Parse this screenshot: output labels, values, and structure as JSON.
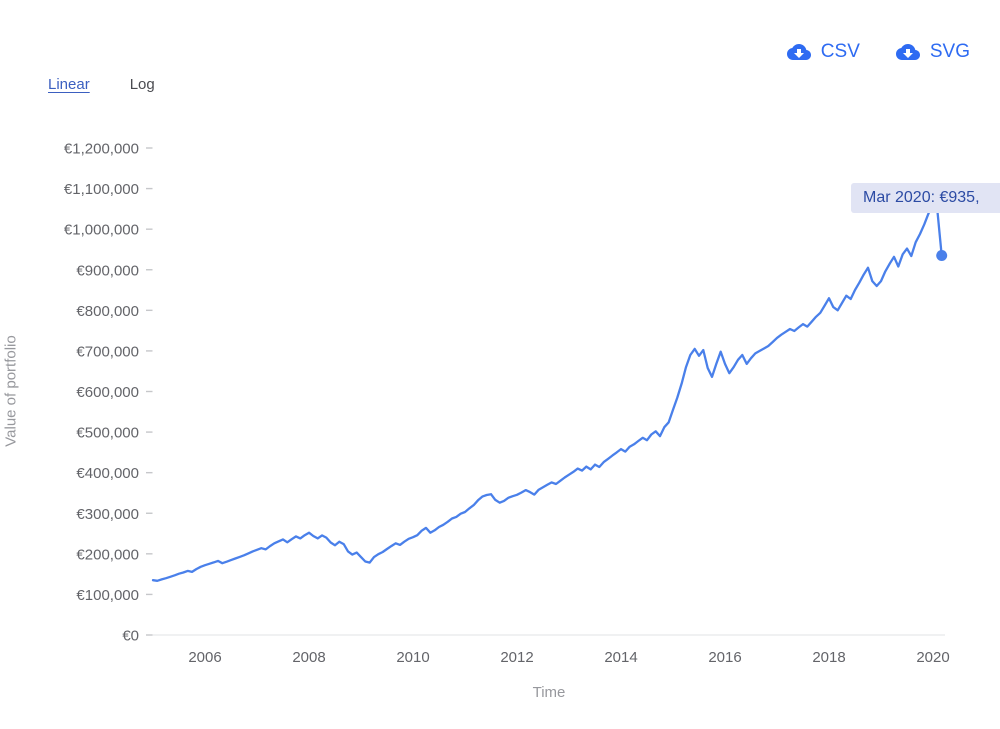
{
  "export_toolbar": {
    "csv_label": "CSV",
    "svg_label": "SVG"
  },
  "scale_tabs": {
    "linear_label": "Linear",
    "log_label": "Log",
    "active": "Linear"
  },
  "tooltip": {
    "text": "Mar 2020: €935,"
  },
  "colors": {
    "accent": "#2e6bf2",
    "line": "#4a80ea",
    "tooltip_bg": "#e1e4f4",
    "tooltip_text": "#2c4ba4",
    "axis_text": "#636469",
    "muted_text": "#97989d",
    "tab_active": "#3b5fc0",
    "tab_inactive": "#4a4b50",
    "baseline": "#e2e3e5",
    "tick": "#c6c7ca"
  },
  "chart_data": {
    "type": "line",
    "title": "",
    "xlabel": "Time",
    "ylabel": "Value of portfolio",
    "currency": "EUR",
    "grid": false,
    "legend": false,
    "x_ticks": [
      2006,
      2008,
      2010,
      2012,
      2014,
      2016,
      2018,
      2020
    ],
    "y_tick_values": [
      0,
      100000,
      200000,
      300000,
      400000,
      500000,
      600000,
      700000,
      800000,
      900000,
      1000000,
      1100000,
      1200000
    ],
    "xlim": [
      2005,
      2020.25
    ],
    "ylim": [
      0,
      1200000
    ],
    "highlight_point": {
      "label": "Mar 2020",
      "value": 935000
    },
    "series": [
      {
        "name": "Value of portfolio",
        "x_start": "2005-01",
        "frequency": "monthly",
        "values": [
          135000,
          133500,
          137000,
          140000,
          143500,
          147000,
          151000,
          154000,
          158000,
          155500,
          162500,
          168000,
          172000,
          175500,
          179000,
          182500,
          177000,
          180500,
          184500,
          188500,
          192500,
          196500,
          201000,
          206000,
          210000,
          214000,
          211000,
          219000,
          226000,
          231000,
          235500,
          228500,
          236000,
          243000,
          238000,
          246000,
          252000,
          244000,
          238000,
          245500,
          240000,
          228000,
          221000,
          230000,
          224000,
          206000,
          198000,
          203000,
          192000,
          181000,
          178500,
          192000,
          199000,
          204500,
          212000,
          219000,
          226000,
          222000,
          230000,
          237000,
          241000,
          246000,
          257000,
          264000,
          252000,
          258000,
          266000,
          271500,
          279000,
          287000,
          291000,
          299000,
          303000,
          312000,
          320000,
          332000,
          341000,
          345000,
          347000,
          333000,
          326000,
          330500,
          338000,
          342000,
          345500,
          351000,
          357000,
          352000,
          346000,
          358000,
          364000,
          370000,
          376000,
          372000,
          380000,
          388000,
          395000,
          402000,
          410000,
          405000,
          415000,
          408000,
          420000,
          414000,
          426000,
          434000,
          442000,
          450000,
          458000,
          452000,
          464000,
          470000,
          478000,
          486000,
          480000,
          494000,
          502000,
          490000,
          512000,
          524000,
          555000,
          585000,
          620000,
          660000,
          690000,
          705000,
          688000,
          702000,
          658000,
          636000,
          668000,
          698000,
          668000,
          645000,
          660000,
          678000,
          690000,
          668000,
          682000,
          694000,
          700000,
          706000,
          712000,
          722000,
          732000,
          740000,
          747000,
          754000,
          749000,
          758000,
          766000,
          760000,
          772000,
          784000,
          794000,
          812000,
          830000,
          808000,
          800000,
          818000,
          836000,
          828000,
          850000,
          868000,
          888000,
          905000,
          872000,
          860000,
          872000,
          896000,
          915000,
          932000,
          908000,
          938000,
          952000,
          934000,
          968000,
          988000,
          1012000,
          1040000,
          1055000,
          1048000,
          935000
        ]
      }
    ]
  }
}
